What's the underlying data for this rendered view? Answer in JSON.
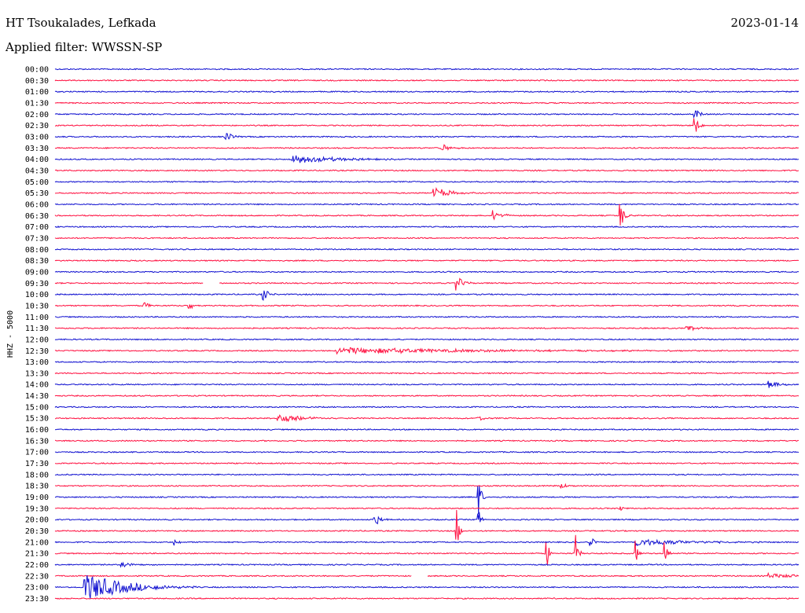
{
  "header": {
    "station": "HT Tsoukalades, Lefkada",
    "filter_label": "Applied filter: WWSSN-SP",
    "date": "2023-01-14"
  },
  "colors": {
    "blue": "#1010d0",
    "red": "#ff1040"
  },
  "chart_data": {
    "type": "line",
    "title": "HT Tsoukalades, Lefkada",
    "ylabel": "HHZ - 5000",
    "y_tick_labels": [
      "00:00",
      "00:30",
      "01:00",
      "01:30",
      "02:00",
      "02:30",
      "03:00",
      "03:30",
      "04:00",
      "04:30",
      "05:00",
      "05:30",
      "06:00",
      "06:30",
      "07:00",
      "07:30",
      "08:00",
      "08:30",
      "09:00",
      "09:30",
      "10:00",
      "10:30",
      "11:00",
      "11:30",
      "12:00",
      "12:30",
      "13:00",
      "13:30",
      "14:00",
      "14:30",
      "15:00",
      "15:30",
      "16:00",
      "16:30",
      "17:00",
      "17:30",
      "18:00",
      "18:30",
      "19:00",
      "19:30",
      "20:00",
      "20:30",
      "21:00",
      "21:30",
      "22:00",
      "22:30",
      "23:00",
      "23:30"
    ],
    "series_colors": [
      "blue",
      "red"
    ],
    "gaps": [
      {
        "row": 19,
        "from": 0.2,
        "to": 0.22
      },
      {
        "row": 45,
        "from": 0.48,
        "to": 0.5
      }
    ],
    "events": [
      {
        "row": 4,
        "pos": 0.86,
        "amp": 10,
        "dur": 0.005
      },
      {
        "row": 5,
        "pos": 0.86,
        "amp": 14,
        "dur": 0.005
      },
      {
        "row": 6,
        "pos": 0.23,
        "amp": 6,
        "dur": 0.008
      },
      {
        "row": 7,
        "pos": 0.52,
        "amp": 5,
        "dur": 0.01
      },
      {
        "row": 8,
        "pos": 0.32,
        "amp": 6,
        "dur": 0.05
      },
      {
        "row": 11,
        "pos": 0.51,
        "amp": 7,
        "dur": 0.02
      },
      {
        "row": 13,
        "pos": 0.59,
        "amp": 7,
        "dur": 0.01
      },
      {
        "row": 13,
        "pos": 0.76,
        "amp": 18,
        "dur": 0.005
      },
      {
        "row": 19,
        "pos": 0.54,
        "amp": 10,
        "dur": 0.008
      },
      {
        "row": 20,
        "pos": 0.28,
        "amp": 9,
        "dur": 0.006
      },
      {
        "row": 21,
        "pos": 0.12,
        "amp": 8,
        "dur": 0.004
      },
      {
        "row": 21,
        "pos": 0.18,
        "amp": 8,
        "dur": 0.004
      },
      {
        "row": 23,
        "pos": 0.85,
        "amp": 5,
        "dur": 0.01
      },
      {
        "row": 25,
        "pos": 0.38,
        "amp": 4,
        "dur": 0.18
      },
      {
        "row": 28,
        "pos": 0.96,
        "amp": 5,
        "dur": 0.012
      },
      {
        "row": 31,
        "pos": 0.3,
        "amp": 6,
        "dur": 0.03
      },
      {
        "row": 31,
        "pos": 0.57,
        "amp": 5,
        "dur": 0.005
      },
      {
        "row": 37,
        "pos": 0.68,
        "amp": 5,
        "dur": 0.005
      },
      {
        "row": 38,
        "pos": 0.57,
        "amp": 28,
        "dur": 0.003
      },
      {
        "row": 39,
        "pos": 0.76,
        "amp": 6,
        "dur": 0.004
      },
      {
        "row": 40,
        "pos": 0.43,
        "amp": 9,
        "dur": 0.006
      },
      {
        "row": 40,
        "pos": 0.57,
        "amp": 12,
        "dur": 0.003
      },
      {
        "row": 41,
        "pos": 0.54,
        "amp": 28,
        "dur": 0.003
      },
      {
        "row": 42,
        "pos": 0.16,
        "amp": 5,
        "dur": 0.005
      },
      {
        "row": 42,
        "pos": 0.72,
        "amp": 12,
        "dur": 0.003
      },
      {
        "row": 42,
        "pos": 0.78,
        "amp": 5,
        "dur": 0.06
      },
      {
        "row": 43,
        "pos": 0.66,
        "amp": 30,
        "dur": 0.003
      },
      {
        "row": 43,
        "pos": 0.7,
        "amp": 24,
        "dur": 0.003
      },
      {
        "row": 43,
        "pos": 0.78,
        "amp": 18,
        "dur": 0.003
      },
      {
        "row": 43,
        "pos": 0.82,
        "amp": 24,
        "dur": 0.003
      },
      {
        "row": 44,
        "pos": 0.09,
        "amp": 4,
        "dur": 0.015
      },
      {
        "row": 45,
        "pos": 0.96,
        "amp": 4,
        "dur": 0.03
      },
      {
        "row": 46,
        "pos": 0.04,
        "amp": 18,
        "dur": 0.05
      }
    ]
  }
}
